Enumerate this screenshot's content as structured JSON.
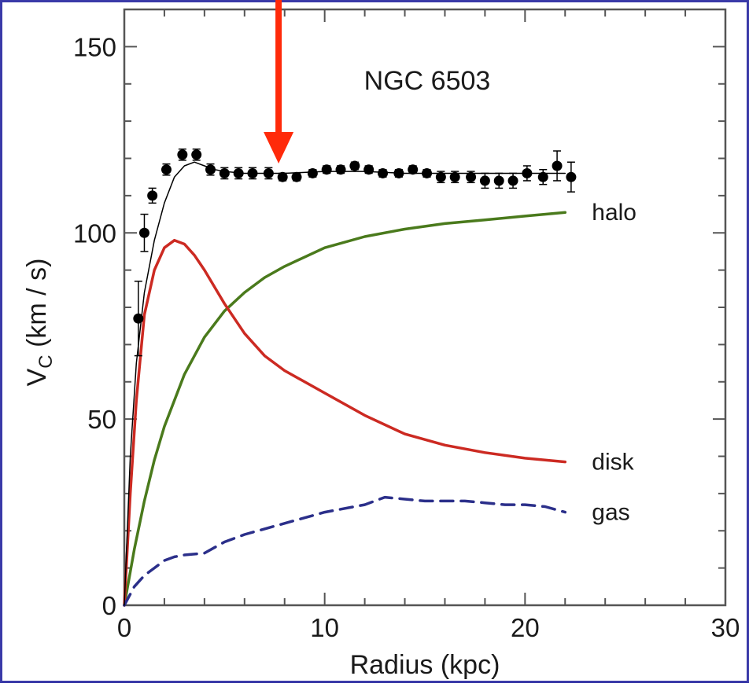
{
  "chart_data": {
    "type": "line",
    "title": "NGC 6503",
    "xlabel": "Radius (kpc)",
    "ylabel_main": "V",
    "ylabel_sub": "C",
    "ylabel_unit": " (km / s)",
    "xlim": [
      0,
      30
    ],
    "ylim": [
      0,
      160
    ],
    "x_ticks": [
      0,
      10,
      20,
      30
    ],
    "x_tick_labels": [
      "0",
      "10",
      "20",
      "30"
    ],
    "y_ticks": [
      0,
      50,
      100,
      150
    ],
    "y_tick_labels": [
      "0",
      "50",
      "100",
      "150"
    ],
    "grid": false,
    "legend": "labels at right end of curves",
    "colors": {
      "halo": "#4a7a1c",
      "disk": "#cc2a22",
      "gas": "#2b2f8a",
      "total": "#000000",
      "arrow": "#ff2a0a",
      "border": "#3a3aa8"
    },
    "arrow_x": 7.7,
    "series": [
      {
        "name": "halo",
        "style": "solid",
        "x": [
          0,
          0.5,
          1,
          1.5,
          2,
          3,
          4,
          5,
          6,
          7,
          8,
          10,
          12,
          14,
          16,
          18,
          20,
          22
        ],
        "y": [
          0,
          15,
          28,
          39,
          48,
          62,
          72,
          79,
          84,
          88,
          91,
          96,
          99,
          101,
          102.5,
          103.5,
          104.5,
          105.5
        ]
      },
      {
        "name": "disk",
        "style": "solid",
        "x": [
          0,
          0.3,
          0.6,
          1,
          1.5,
          2,
          2.5,
          3,
          3.5,
          4,
          5,
          6,
          7,
          8,
          10,
          12,
          14,
          16,
          18,
          20,
          22
        ],
        "y": [
          0,
          30,
          55,
          78,
          90,
          96,
          98,
          97,
          94,
          90,
          81,
          73,
          67,
          63,
          57,
          51,
          46,
          43,
          41,
          39.5,
          38.5
        ]
      },
      {
        "name": "gas",
        "style": "dashed",
        "x": [
          0,
          0.5,
          1,
          1.5,
          2,
          2.5,
          3,
          4,
          5,
          6,
          8,
          10,
          12,
          13,
          14,
          15,
          16,
          17,
          18,
          19,
          20,
          21,
          22
        ],
        "y": [
          0,
          5,
          8,
          10,
          12,
          13,
          13.5,
          14,
          17,
          19,
          22,
          25,
          27,
          29,
          28.5,
          28,
          28,
          28,
          27.5,
          27,
          27,
          26.5,
          25
        ]
      },
      {
        "name": "",
        "style": "thin",
        "x": [
          0,
          0.3,
          0.6,
          1,
          1.5,
          2,
          2.5,
          3,
          3.5,
          4,
          4.5,
          5,
          6,
          7,
          8,
          10,
          12,
          14,
          16,
          18,
          20,
          22
        ],
        "y": [
          0,
          40,
          65,
          84,
          98,
          108,
          115,
          118,
          119,
          118,
          117,
          116.5,
          116,
          116,
          116,
          116.5,
          116.5,
          116,
          116,
          116,
          116,
          116
        ]
      }
    ],
    "observed": {
      "x": [
        0.7,
        1.0,
        1.4,
        2.1,
        2.9,
        3.6,
        4.3,
        5.0,
        5.7,
        6.4,
        7.2,
        7.9,
        8.6,
        9.4,
        10.1,
        10.8,
        11.5,
        12.2,
        12.9,
        13.7,
        14.4,
        15.1,
        15.8,
        16.5,
        17.3,
        18.0,
        18.7,
        19.4,
        20.1,
        20.9,
        21.6,
        22.3
      ],
      "y": [
        77,
        100,
        110,
        117,
        121,
        121,
        117,
        116,
        116,
        116,
        116,
        115,
        115,
        116,
        117,
        117,
        118,
        117,
        116,
        116,
        117,
        116,
        115,
        115,
        115,
        114,
        114,
        114,
        116,
        115,
        118,
        115
      ],
      "err": [
        10,
        5,
        2,
        1.5,
        1.5,
        1.5,
        1.5,
        1.5,
        1.5,
        1.5,
        1.5,
        1,
        1,
        1,
        1,
        1,
        1,
        1,
        1,
        1,
        1,
        1,
        1.5,
        1.5,
        1.5,
        2,
        2,
        2,
        2,
        2,
        4,
        4
      ]
    }
  }
}
